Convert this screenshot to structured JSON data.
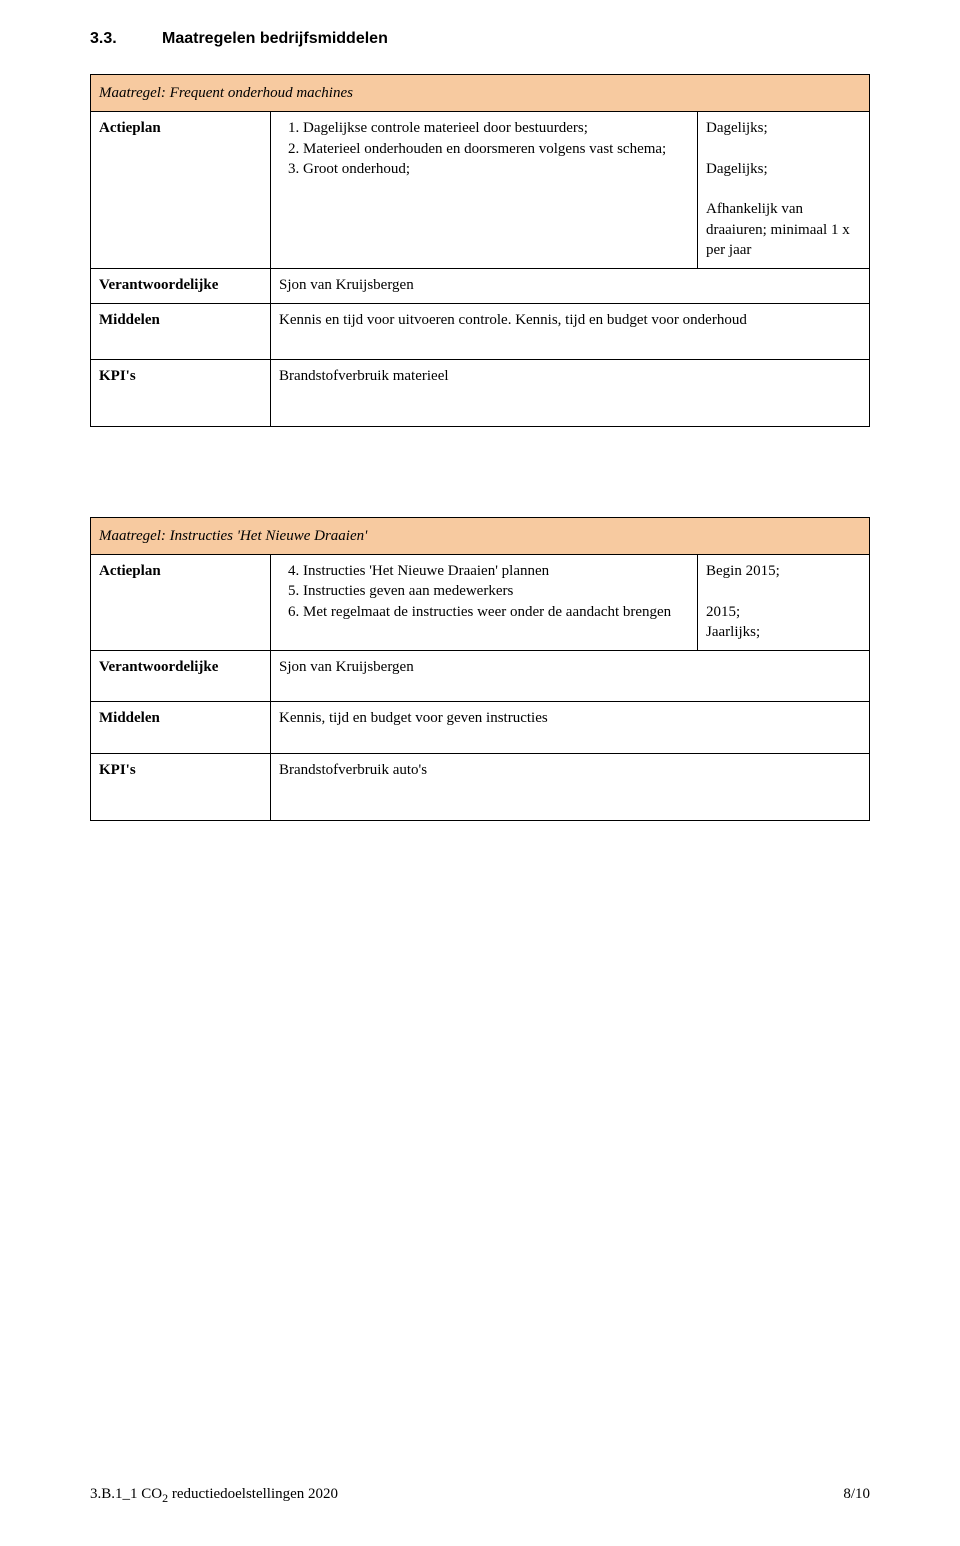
{
  "colors": {
    "header_bg": "#f7caa0",
    "border": "#000000",
    "text": "#000000"
  },
  "section": {
    "number": "3.3.",
    "title": "Maatregelen bedrijfsmiddelen"
  },
  "table1": {
    "title": "Maatregel:  Frequent onderhoud machines",
    "rows": {
      "actieplan": {
        "label": "Actieplan",
        "start": 1,
        "items": [
          "Dagelijkse controle materieel door bestuurders;",
          "Materieel onderhouden en doorsmeren volgens vast schema;",
          "Groot onderhoud;"
        ],
        "right_lines": [
          "Dagelijks;",
          "",
          "Dagelijks;",
          "",
          "Afhankelijk van draaiuren; minimaal 1 x per jaar"
        ]
      },
      "verantwoordelijke": {
        "label": "Verantwoordelijke",
        "value": "Sjon van Kruijsbergen"
      },
      "middelen": {
        "label": "Middelen",
        "value": "Kennis en tijd voor uitvoeren controle. Kennis, tijd en budget voor onderhoud"
      },
      "kpis": {
        "label": "KPI's",
        "value": "Brandstofverbruik materieel"
      }
    }
  },
  "table2": {
    "title": "Maatregel:  Instructies 'Het Nieuwe Draaien'",
    "rows": {
      "actieplan": {
        "label": "Actieplan",
        "start": 4,
        "items": [
          "Instructies 'Het Nieuwe Draaien' plannen",
          "Instructies geven aan medewerkers",
          "Met regelmaat de instructies weer onder de aandacht brengen"
        ],
        "right_lines": [
          "Begin 2015;",
          "",
          "2015;",
          "Jaarlijks;"
        ]
      },
      "verantwoordelijke": {
        "label": "Verantwoordelijke",
        "value": "Sjon van Kruijsbergen"
      },
      "middelen": {
        "label": "Middelen",
        "value": "Kennis, tijd en budget voor geven instructies"
      },
      "kpis": {
        "label": "KPI's",
        "value": "Brandstofverbruik auto's"
      }
    }
  },
  "footer": {
    "left_pre": "3.B.1_1 CO",
    "left_sub": "2",
    "left_post": " reductiedoelstellingen 2020",
    "right": "8/10"
  }
}
